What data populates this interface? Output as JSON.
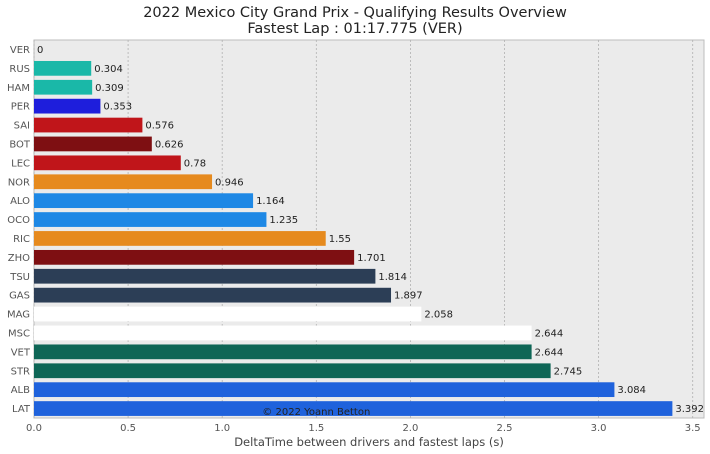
{
  "title": "2022 Mexico City Grand Prix - Qualifying Results Overview",
  "subtitle": "Fastest Lap : 01:17.775 (VER)",
  "credit": "© 2022 Yoann Betton",
  "chart_data": {
    "type": "bar",
    "orientation": "horizontal",
    "title": "2022 Mexico City Grand Prix - Qualifying Results Overview",
    "subtitle": "Fastest Lap : 01:17.775 (VER)",
    "xlabel": "DeltaTime between drivers and fastest laps (s)",
    "ylabel": "",
    "xlim": [
      0,
      3.56
    ],
    "xticks": [
      "0.0",
      "0.5",
      "1.0",
      "1.5",
      "2.0",
      "2.5",
      "3.0",
      "3.5"
    ],
    "grid": true,
    "categories": [
      "VER",
      "RUS",
      "HAM",
      "PER",
      "SAI",
      "BOT",
      "LEC",
      "NOR",
      "ALO",
      "OCO",
      "RIC",
      "ZHO",
      "TSU",
      "GAS",
      "MAG",
      "MSC",
      "VET",
      "STR",
      "ALB",
      "LAT"
    ],
    "values": [
      0,
      0.304,
      0.309,
      0.353,
      0.576,
      0.626,
      0.78,
      0.946,
      1.164,
      1.235,
      1.55,
      1.701,
      1.814,
      1.897,
      2.058,
      2.644,
      2.644,
      2.745,
      3.084,
      3.392
    ],
    "labels": [
      "0",
      "0.304",
      "0.309",
      "0.353",
      "0.576",
      "0.626",
      "0.78",
      "0.946",
      "1.164",
      "1.235",
      "1.55",
      "1.701",
      "1.814",
      "1.897",
      "2.058",
      "2.644",
      "2.644",
      "2.745",
      "3.084",
      "3.392"
    ],
    "colors": [
      "#1e41ff",
      "#1ab8a8",
      "#1ab8a8",
      "#1e1edc",
      "#c0151a",
      "#7e0f12",
      "#c0151a",
      "#e68a1e",
      "#1e88e5",
      "#1e88e5",
      "#e68a1e",
      "#7e0f12",
      "#2c3e56",
      "#2c3e56",
      "#ffffff",
      "#ffffff",
      "#0e6656",
      "#0e6656",
      "#1f62dc",
      "#1f62dc"
    ]
  }
}
